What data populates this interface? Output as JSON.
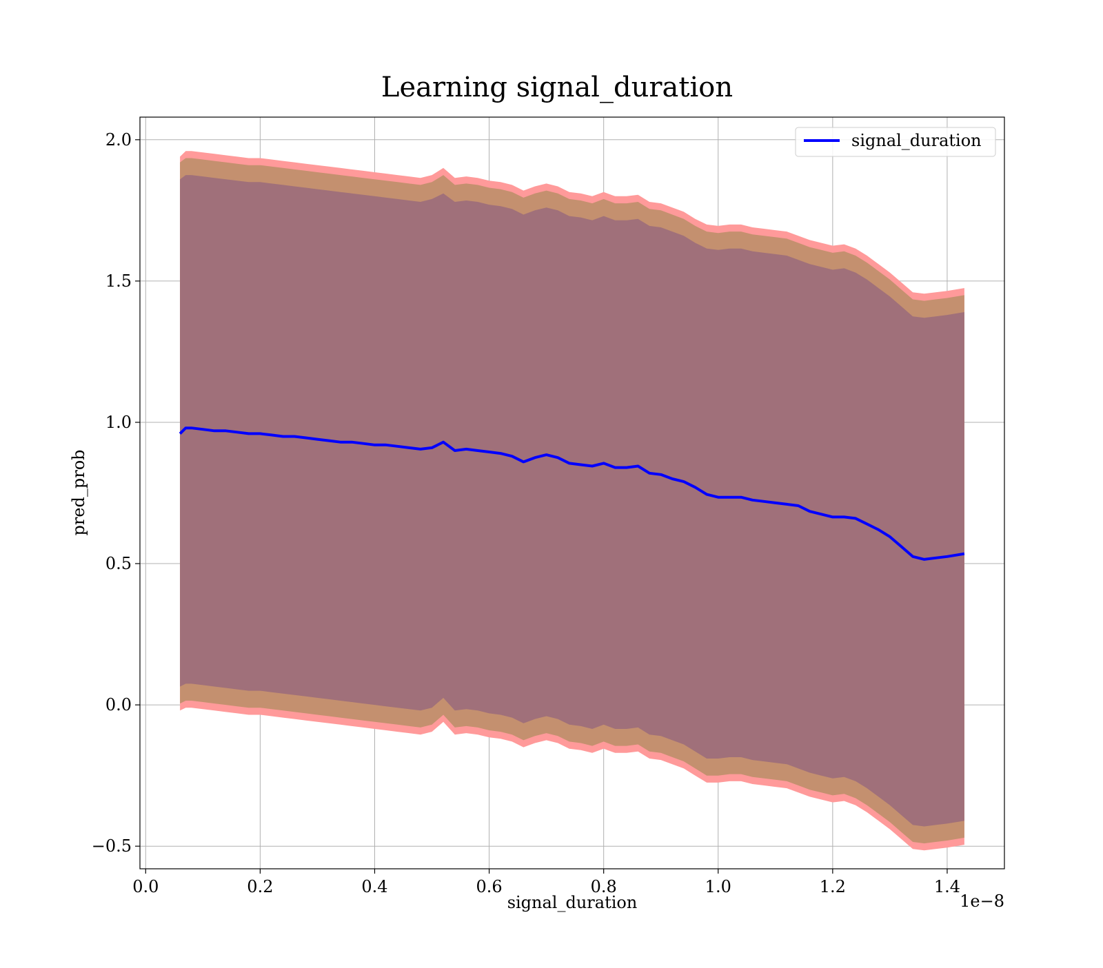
{
  "chart_data": {
    "type": "line",
    "title": "Learning signal_duration",
    "xlabel": "signal_duration",
    "ylabel": "pred_prob",
    "x_offset_label": "1e−8",
    "xlim": [
      -0.01,
      1.5
    ],
    "ylim": [
      -0.58,
      2.08
    ],
    "x_ticks": [
      0.0,
      0.2,
      0.4,
      0.6,
      0.8,
      1.0,
      1.2,
      1.4
    ],
    "x_tick_labels": [
      "0.0",
      "0.2",
      "0.4",
      "0.6",
      "0.8",
      "1.0",
      "1.2",
      "1.4"
    ],
    "y_ticks": [
      -0.5,
      0.0,
      0.5,
      1.0,
      1.5,
      2.0
    ],
    "y_tick_labels": [
      "−0.5",
      "0.0",
      "0.5",
      "1.0",
      "1.5",
      "2.0"
    ],
    "grid": true,
    "legend_position": "top-right",
    "colors": {
      "line": "#0000ff",
      "outer_band": "#ff9a9a",
      "middle_band": "#c4906f",
      "inner_band": "#a0707a",
      "grid": "#b0b0b0"
    },
    "series": [
      {
        "name": "signal_duration",
        "x": [
          0.06,
          0.07,
          0.08,
          0.1,
          0.12,
          0.14,
          0.16,
          0.18,
          0.2,
          0.22,
          0.24,
          0.26,
          0.28,
          0.3,
          0.32,
          0.34,
          0.36,
          0.38,
          0.4,
          0.42,
          0.44,
          0.46,
          0.48,
          0.5,
          0.52,
          0.54,
          0.56,
          0.58,
          0.6,
          0.62,
          0.64,
          0.66,
          0.68,
          0.7,
          0.72,
          0.74,
          0.76,
          0.78,
          0.8,
          0.82,
          0.84,
          0.86,
          0.88,
          0.9,
          0.92,
          0.94,
          0.96,
          0.98,
          1.0,
          1.02,
          1.04,
          1.06,
          1.08,
          1.1,
          1.12,
          1.14,
          1.16,
          1.18,
          1.2,
          1.22,
          1.24,
          1.26,
          1.28,
          1.3,
          1.32,
          1.34,
          1.36,
          1.38,
          1.4,
          1.43
        ],
        "y": [
          0.96,
          0.98,
          0.98,
          0.975,
          0.97,
          0.97,
          0.965,
          0.96,
          0.96,
          0.955,
          0.95,
          0.95,
          0.945,
          0.94,
          0.935,
          0.93,
          0.93,
          0.925,
          0.92,
          0.92,
          0.915,
          0.91,
          0.905,
          0.91,
          0.93,
          0.9,
          0.905,
          0.9,
          0.895,
          0.89,
          0.88,
          0.86,
          0.875,
          0.885,
          0.875,
          0.855,
          0.85,
          0.845,
          0.855,
          0.84,
          0.84,
          0.845,
          0.82,
          0.815,
          0.8,
          0.79,
          0.77,
          0.745,
          0.735,
          0.735,
          0.735,
          0.725,
          0.72,
          0.715,
          0.71,
          0.705,
          0.685,
          0.675,
          0.665,
          0.665,
          0.66,
          0.64,
          0.62,
          0.595,
          0.56,
          0.525,
          0.515,
          0.52,
          0.525,
          0.535
        ]
      }
    ],
    "bands": [
      {
        "role": "outer",
        "upper": [
          1.94,
          1.96,
          1.96,
          1.955,
          1.95,
          1.945,
          1.94,
          1.935,
          1.935,
          1.93,
          1.925,
          1.92,
          1.915,
          1.91,
          1.905,
          1.9,
          1.895,
          1.89,
          1.885,
          1.88,
          1.875,
          1.87,
          1.865,
          1.875,
          1.9,
          1.865,
          1.87,
          1.865,
          1.855,
          1.85,
          1.84,
          1.82,
          1.835,
          1.845,
          1.835,
          1.815,
          1.81,
          1.8,
          1.815,
          1.8,
          1.8,
          1.805,
          1.78,
          1.775,
          1.76,
          1.745,
          1.72,
          1.7,
          1.695,
          1.7,
          1.7,
          1.69,
          1.685,
          1.68,
          1.675,
          1.66,
          1.645,
          1.635,
          1.625,
          1.63,
          1.615,
          1.59,
          1.56,
          1.53,
          1.495,
          1.46,
          1.455,
          1.46,
          1.465,
          1.475
        ],
        "lower": [
          -0.02,
          -0.01,
          -0.01,
          -0.015,
          -0.02,
          -0.025,
          -0.03,
          -0.035,
          -0.035,
          -0.04,
          -0.045,
          -0.05,
          -0.055,
          -0.06,
          -0.065,
          -0.07,
          -0.075,
          -0.08,
          -0.085,
          -0.09,
          -0.095,
          -0.1,
          -0.105,
          -0.095,
          -0.06,
          -0.105,
          -0.1,
          -0.105,
          -0.115,
          -0.12,
          -0.13,
          -0.15,
          -0.135,
          -0.125,
          -0.135,
          -0.155,
          -0.16,
          -0.17,
          -0.155,
          -0.17,
          -0.17,
          -0.165,
          -0.19,
          -0.195,
          -0.21,
          -0.225,
          -0.25,
          -0.275,
          -0.275,
          -0.27,
          -0.27,
          -0.28,
          -0.285,
          -0.29,
          -0.295,
          -0.31,
          -0.325,
          -0.335,
          -0.345,
          -0.34,
          -0.355,
          -0.38,
          -0.41,
          -0.44,
          -0.475,
          -0.51,
          -0.515,
          -0.51,
          -0.505,
          -0.495
        ]
      },
      {
        "role": "middle",
        "upper": [
          1.92,
          1.935,
          1.935,
          1.93,
          1.925,
          1.92,
          1.915,
          1.91,
          1.91,
          1.905,
          1.9,
          1.895,
          1.89,
          1.885,
          1.88,
          1.875,
          1.87,
          1.865,
          1.86,
          1.855,
          1.85,
          1.845,
          1.84,
          1.85,
          1.875,
          1.84,
          1.845,
          1.84,
          1.83,
          1.825,
          1.815,
          1.795,
          1.81,
          1.82,
          1.81,
          1.79,
          1.785,
          1.775,
          1.79,
          1.775,
          1.775,
          1.78,
          1.755,
          1.75,
          1.735,
          1.72,
          1.695,
          1.675,
          1.67,
          1.675,
          1.675,
          1.665,
          1.66,
          1.655,
          1.65,
          1.635,
          1.62,
          1.61,
          1.6,
          1.605,
          1.59,
          1.565,
          1.535,
          1.505,
          1.47,
          1.435,
          1.43,
          1.435,
          1.44,
          1.45
        ],
        "lower": [
          0.005,
          0.015,
          0.015,
          0.01,
          0.005,
          0.0,
          -0.005,
          -0.01,
          -0.01,
          -0.015,
          -0.02,
          -0.025,
          -0.03,
          -0.035,
          -0.04,
          -0.045,
          -0.05,
          -0.055,
          -0.06,
          -0.065,
          -0.07,
          -0.075,
          -0.08,
          -0.07,
          -0.035,
          -0.08,
          -0.075,
          -0.08,
          -0.09,
          -0.095,
          -0.105,
          -0.125,
          -0.11,
          -0.1,
          -0.11,
          -0.13,
          -0.135,
          -0.145,
          -0.13,
          -0.145,
          -0.145,
          -0.14,
          -0.165,
          -0.17,
          -0.185,
          -0.2,
          -0.225,
          -0.25,
          -0.25,
          -0.245,
          -0.245,
          -0.255,
          -0.26,
          -0.265,
          -0.27,
          -0.285,
          -0.3,
          -0.31,
          -0.32,
          -0.315,
          -0.33,
          -0.355,
          -0.385,
          -0.415,
          -0.45,
          -0.485,
          -0.49,
          -0.485,
          -0.48,
          -0.47
        ]
      },
      {
        "role": "inner",
        "upper": [
          1.86,
          1.875,
          1.875,
          1.87,
          1.865,
          1.86,
          1.855,
          1.85,
          1.85,
          1.845,
          1.84,
          1.835,
          1.83,
          1.825,
          1.82,
          1.815,
          1.81,
          1.805,
          1.8,
          1.795,
          1.79,
          1.785,
          1.78,
          1.79,
          1.81,
          1.78,
          1.785,
          1.78,
          1.77,
          1.765,
          1.755,
          1.735,
          1.75,
          1.76,
          1.75,
          1.73,
          1.725,
          1.715,
          1.73,
          1.715,
          1.715,
          1.72,
          1.695,
          1.69,
          1.675,
          1.66,
          1.635,
          1.615,
          1.61,
          1.615,
          1.615,
          1.605,
          1.6,
          1.595,
          1.59,
          1.575,
          1.56,
          1.55,
          1.54,
          1.545,
          1.53,
          1.505,
          1.475,
          1.445,
          1.41,
          1.375,
          1.37,
          1.375,
          1.38,
          1.39
        ],
        "lower": [
          0.065,
          0.075,
          0.075,
          0.07,
          0.065,
          0.06,
          0.055,
          0.05,
          0.05,
          0.045,
          0.04,
          0.035,
          0.03,
          0.025,
          0.02,
          0.015,
          0.01,
          0.005,
          0.0,
          -0.005,
          -0.01,
          -0.015,
          -0.02,
          -0.01,
          0.025,
          -0.02,
          -0.015,
          -0.02,
          -0.03,
          -0.035,
          -0.045,
          -0.065,
          -0.05,
          -0.04,
          -0.05,
          -0.07,
          -0.075,
          -0.085,
          -0.07,
          -0.085,
          -0.085,
          -0.08,
          -0.105,
          -0.11,
          -0.125,
          -0.14,
          -0.165,
          -0.19,
          -0.19,
          -0.185,
          -0.185,
          -0.195,
          -0.2,
          -0.205,
          -0.21,
          -0.225,
          -0.24,
          -0.25,
          -0.26,
          -0.255,
          -0.27,
          -0.295,
          -0.325,
          -0.355,
          -0.39,
          -0.425,
          -0.43,
          -0.425,
          -0.42,
          -0.41
        ]
      }
    ]
  }
}
